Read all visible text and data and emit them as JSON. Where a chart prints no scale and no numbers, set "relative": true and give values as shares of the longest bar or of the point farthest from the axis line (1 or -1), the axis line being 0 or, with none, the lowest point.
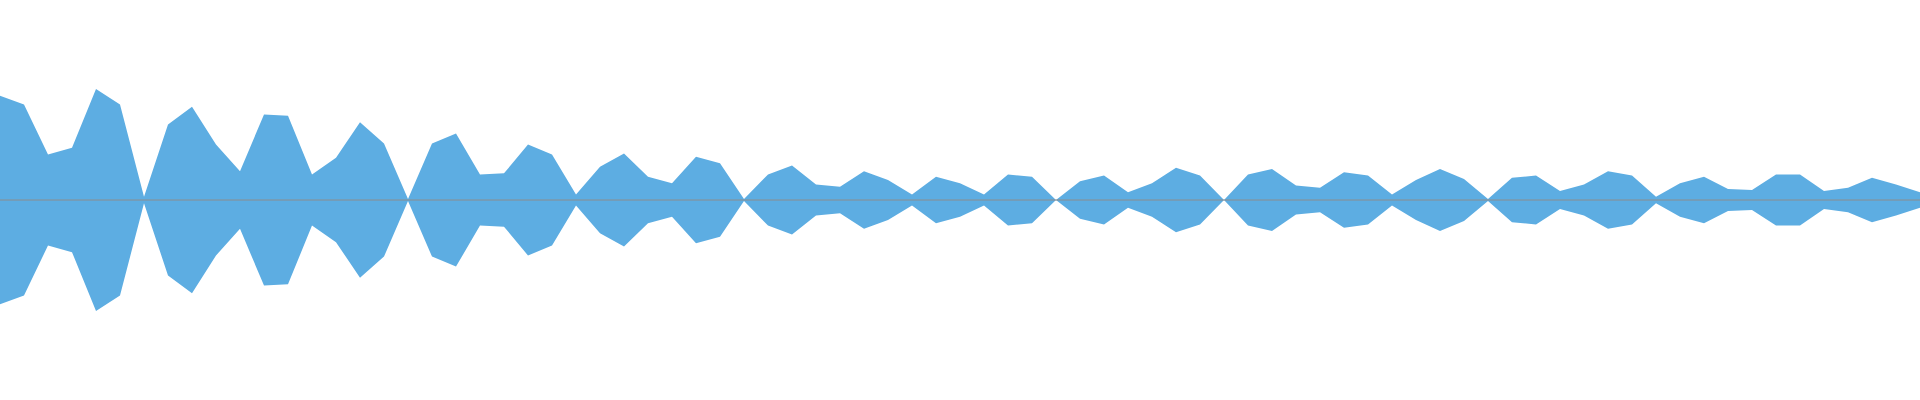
{
  "chart_data": {
    "type": "area",
    "relative": true,
    "categories": [
      null,
      null,
      null,
      null,
      null,
      null,
      null,
      null,
      null,
      null,
      null,
      null,
      null,
      null,
      null,
      null,
      null,
      null,
      null,
      null,
      null,
      null,
      null,
      null,
      null,
      null,
      null,
      null,
      null,
      null,
      null,
      null,
      null,
      null,
      null,
      null,
      null,
      null,
      null,
      null,
      null,
      null,
      null,
      null,
      null,
      null,
      null,
      null,
      null,
      null,
      null,
      null,
      null,
      null,
      null,
      null,
      null,
      null,
      null,
      null,
      null,
      null,
      null,
      null,
      null,
      null,
      null,
      null,
      null,
      null,
      null,
      null,
      null,
      null,
      null,
      null,
      null,
      null,
      null,
      null,
      null
    ],
    "series": [
      {
        "color": "#5dade2",
        "values": [
          0.94,
          0.86,
          0.41,
          0.47,
          1,
          0.86,
          0.03,
          0.68,
          0.84,
          0.5,
          0.26,
          0.77,
          0.76,
          0.23,
          0.38,
          0.7,
          0.51,
          0.01,
          0.51,
          0.6,
          0.23,
          0.24,
          0.5,
          0.41,
          0.05,
          0.3,
          0.42,
          0.21,
          0.15,
          0.39,
          0.33,
          0.01,
          0.23,
          0.31,
          0.14,
          0.12,
          0.26,
          0.18,
          0.05,
          0.21,
          0.15,
          0.05,
          0.23,
          0.21,
          0,
          0.17,
          0.22,
          0.07,
          0.15,
          0.29,
          0.22,
          0,
          0.23,
          0.28,
          0.13,
          0.11,
          0.25,
          0.22,
          0.05,
          0.18,
          0.28,
          0.19,
          0.01,
          0.2,
          0.22,
          0.08,
          0.14,
          0.26,
          0.22,
          0.03,
          0.15,
          0.21,
          0.1,
          0.09,
          0.23,
          0.23,
          0.08,
          0.11,
          0.2,
          0.14,
          0.07
        ]
      },
      {
        "color": "#5dade2",
        "values": [
          -0.94,
          -0.86,
          -0.41,
          -0.47,
          -1,
          -0.86,
          -0.03,
          -0.68,
          -0.84,
          -0.5,
          -0.26,
          -0.77,
          -0.76,
          -0.23,
          -0.38,
          -0.7,
          -0.51,
          -0.01,
          -0.51,
          -0.6,
          -0.23,
          -0.24,
          -0.5,
          -0.41,
          -0.05,
          -0.3,
          -0.42,
          -0.21,
          -0.15,
          -0.39,
          -0.33,
          -0.01,
          -0.23,
          -0.31,
          -0.14,
          -0.12,
          -0.26,
          -0.18,
          -0.05,
          -0.21,
          -0.15,
          -0.05,
          -0.23,
          -0.21,
          0,
          -0.17,
          -0.22,
          -0.07,
          -0.15,
          -0.29,
          -0.22,
          0,
          -0.23,
          -0.28,
          -0.13,
          -0.11,
          -0.25,
          -0.22,
          -0.05,
          -0.18,
          -0.28,
          -0.19,
          -0.01,
          -0.2,
          -0.22,
          -0.08,
          -0.14,
          -0.26,
          -0.22,
          -0.03,
          -0.15,
          -0.21,
          -0.1,
          -0.09,
          -0.23,
          -0.23,
          -0.08,
          -0.11,
          -0.2,
          -0.14,
          -0.07
        ]
      }
    ]
  }
}
